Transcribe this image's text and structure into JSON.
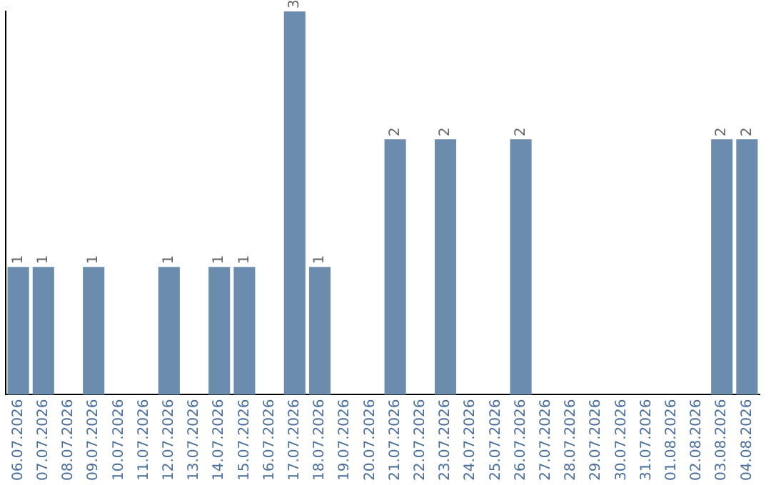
{
  "chart_data": {
    "type": "bar",
    "categories": [
      "06.07.2026",
      "07.07.2026",
      "08.07.2026",
      "09.07.2026",
      "10.07.2026",
      "11.07.2026",
      "12.07.2026",
      "13.07.2026",
      "14.07.2026",
      "15.07.2026",
      "16.07.2026",
      "17.07.2026",
      "18.07.2026",
      "19.07.2026",
      "20.07.2026",
      "21.07.2026",
      "22.07.2026",
      "23.07.2026",
      "24.07.2026",
      "25.07.2026",
      "26.07.2026",
      "27.07.2026",
      "28.07.2026",
      "29.07.2026",
      "30.07.2026",
      "31.07.2026",
      "01.08.2026",
      "02.08.2026",
      "03.08.2026",
      "04.08.2026"
    ],
    "values": [
      1,
      1,
      0,
      1,
      0,
      0,
      1,
      0,
      1,
      1,
      0,
      3,
      1,
      0,
      0,
      2,
      0,
      2,
      0,
      0,
      2,
      0,
      0,
      0,
      0,
      0,
      0,
      0,
      2,
      2
    ],
    "value_labels": [
      "1",
      "1",
      null,
      "1",
      null,
      null,
      "1",
      null,
      "1",
      "1",
      null,
      "3",
      "1",
      null,
      null,
      "2",
      null,
      "2",
      null,
      null,
      "2",
      null,
      null,
      null,
      null,
      null,
      null,
      null,
      "2",
      "2"
    ],
    "color": "#6b8cad",
    "grid": false,
    "legend": false,
    "tick_labels": "x"
  }
}
